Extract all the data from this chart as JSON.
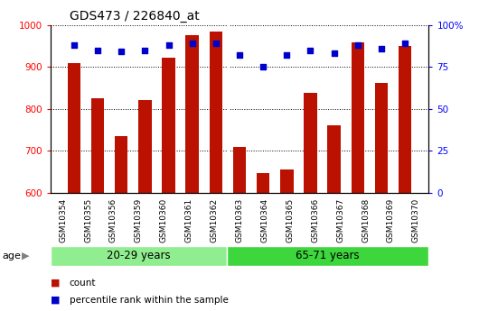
{
  "title": "GDS473 / 226840_at",
  "samples": [
    "GSM10354",
    "GSM10355",
    "GSM10356",
    "GSM10359",
    "GSM10360",
    "GSM10361",
    "GSM10362",
    "GSM10363",
    "GSM10364",
    "GSM10365",
    "GSM10366",
    "GSM10367",
    "GSM10368",
    "GSM10369",
    "GSM10370"
  ],
  "counts": [
    910,
    826,
    734,
    820,
    922,
    975,
    985,
    710,
    648,
    655,
    838,
    760,
    958,
    862,
    950
  ],
  "percentiles": [
    88,
    85,
    84,
    85,
    88,
    89,
    89,
    82,
    75,
    82,
    85,
    83,
    88,
    86,
    89
  ],
  "groups": [
    {
      "label": "20-29 years",
      "start": 0,
      "end": 7,
      "color": "#90EE90"
    },
    {
      "label": "65-71 years",
      "start": 7,
      "end": 15,
      "color": "#3DD63D"
    }
  ],
  "ylim_left": [
    600,
    1000
  ],
  "ylim_right": [
    0,
    100
  ],
  "yticks_left": [
    600,
    700,
    800,
    900,
    1000
  ],
  "yticks_right": [
    0,
    25,
    50,
    75,
    100
  ],
  "bar_color": "#BB1100",
  "dot_color": "#0000CC",
  "bg_color": "#FFFFFF",
  "xtick_bg": "#CCCCCC",
  "age_label": "age",
  "legend_count": "count",
  "legend_pct": "percentile rank within the sample",
  "fig_width": 5.3,
  "fig_height": 3.45,
  "dpi": 100
}
